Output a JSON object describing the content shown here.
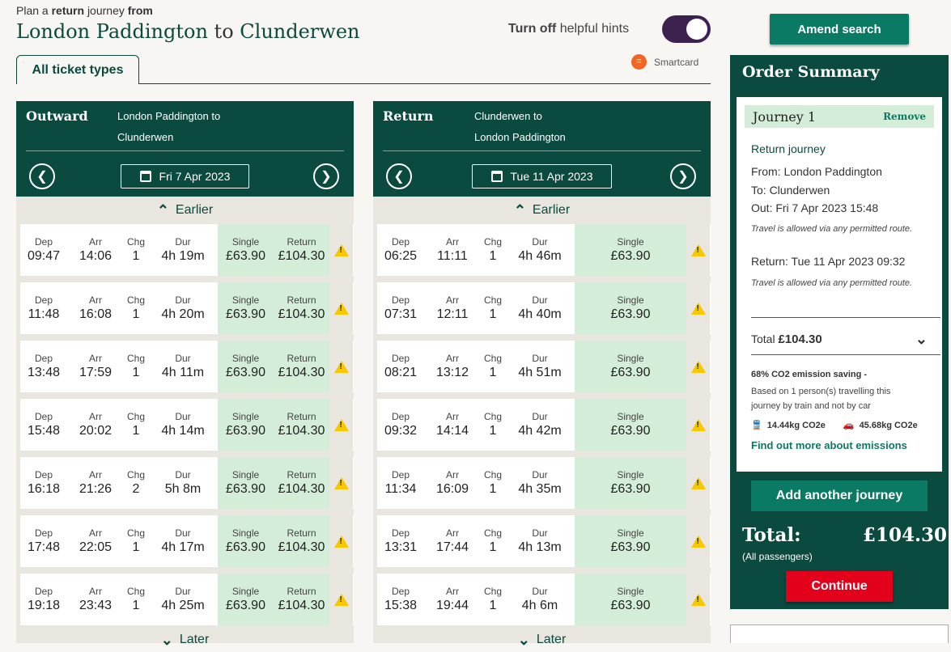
{
  "header": {
    "plan_prefix": "Plan a",
    "plan_bold": "return",
    "plan_mid": "journey",
    "plan_suffix": "from",
    "origin": "London Paddington",
    "to_word": "to",
    "destination": "Clunderwen",
    "hints_bold": "Turn off",
    "hints_rest": "helpful hints",
    "amend_label": "Amend search"
  },
  "tabs": {
    "all_ticket_types": "All ticket types",
    "smartcard": "Smartcard"
  },
  "outward": {
    "title": "Outward",
    "stations_line1": "London Paddington to",
    "stations_line2": "Clunderwen",
    "date": "Fri 7 Apr 2023",
    "earlier": "Earlier",
    "later": "Later",
    "labels": {
      "dep": "Dep",
      "arr": "Arr",
      "chg": "Chg",
      "dur": "Dur",
      "single": "Single",
      "return": "Return"
    },
    "rows": [
      {
        "dep": "09:47",
        "arr": "14:06",
        "chg": "1",
        "dur": "4h 19m",
        "single": "£63.90",
        "ret": "£104.30"
      },
      {
        "dep": "11:48",
        "arr": "16:08",
        "chg": "1",
        "dur": "4h 20m",
        "single": "£63.90",
        "ret": "£104.30"
      },
      {
        "dep": "13:48",
        "arr": "17:59",
        "chg": "1",
        "dur": "4h 11m",
        "single": "£63.90",
        "ret": "£104.30"
      },
      {
        "dep": "15:48",
        "arr": "20:02",
        "chg": "1",
        "dur": "4h 14m",
        "single": "£63.90",
        "ret": "£104.30"
      },
      {
        "dep": "16:18",
        "arr": "21:26",
        "chg": "2",
        "dur": "5h 8m",
        "single": "£63.90",
        "ret": "£104.30"
      },
      {
        "dep": "17:48",
        "arr": "22:05",
        "chg": "1",
        "dur": "4h 17m",
        "single": "£63.90",
        "ret": "£104.30"
      },
      {
        "dep": "19:18",
        "arr": "23:43",
        "chg": "1",
        "dur": "4h 25m",
        "single": "£63.90",
        "ret": "£104.30"
      }
    ]
  },
  "return": {
    "title": "Return",
    "stations_line1": "Clunderwen to",
    "stations_line2": "London Paddington",
    "date": "Tue 11 Apr 2023",
    "earlier": "Earlier",
    "later": "Later",
    "labels": {
      "dep": "Dep",
      "arr": "Arr",
      "chg": "Chg",
      "dur": "Dur",
      "single": "Single"
    },
    "rows": [
      {
        "dep": "06:25",
        "arr": "11:11",
        "chg": "1",
        "dur": "4h 46m",
        "single": "£63.90"
      },
      {
        "dep": "07:31",
        "arr": "12:11",
        "chg": "1",
        "dur": "4h 40m",
        "single": "£63.90"
      },
      {
        "dep": "08:21",
        "arr": "13:12",
        "chg": "1",
        "dur": "4h 51m",
        "single": "£63.90"
      },
      {
        "dep": "09:32",
        "arr": "14:14",
        "chg": "1",
        "dur": "4h 42m",
        "single": "£63.90"
      },
      {
        "dep": "11:34",
        "arr": "16:09",
        "chg": "1",
        "dur": "4h 35m",
        "single": "£63.90"
      },
      {
        "dep": "13:31",
        "arr": "17:44",
        "chg": "1",
        "dur": "4h 13m",
        "single": "£63.90"
      },
      {
        "dep": "15:38",
        "arr": "19:44",
        "chg": "1",
        "dur": "4h 6m",
        "single": "£63.90"
      }
    ]
  },
  "summary": {
    "title": "Order Summary",
    "journey_title": "Journey 1",
    "remove": "Remove",
    "journey_type": "Return journey",
    "from": "From: London Paddington",
    "to": "To: Clunderwen",
    "out": "Out: Fri 7 Apr 2023 15:48",
    "out_note": "Travel is allowed via any permitted route.",
    "return_line": "Return: Tue 11 Apr 2023 09:32",
    "return_note": "Travel is allowed via any permitted route.",
    "total_label": "Total",
    "total_value": "£104.30",
    "co2_title": "68% CO2 emission saving -",
    "co2_desc": "Based on 1 person(s) travelling this journey by train and not by car",
    "co2_train": "14.44kg CO2e",
    "co2_car": "45.68kg CO2e",
    "emissions_link": "Find out more about emissions",
    "add_journey": "Add another journey",
    "grand_label": "Total:",
    "grand_value": "£104.30",
    "all_passengers": "(All passengers)",
    "continue": "Continue"
  },
  "colors": {
    "brand_dark": "#0b4a3e",
    "brand_button": "#0b7a64",
    "fare_bg": "#d3edd8",
    "continue": "#e3001b",
    "warning": "#f5c800"
  },
  "icons": [
    "calendar-icon",
    "chevron-left-icon",
    "chevron-right-icon",
    "chevron-up-icon",
    "chevron-down-icon",
    "warning-icon",
    "smartcard-icon",
    "train-icon",
    "car-icon"
  ]
}
